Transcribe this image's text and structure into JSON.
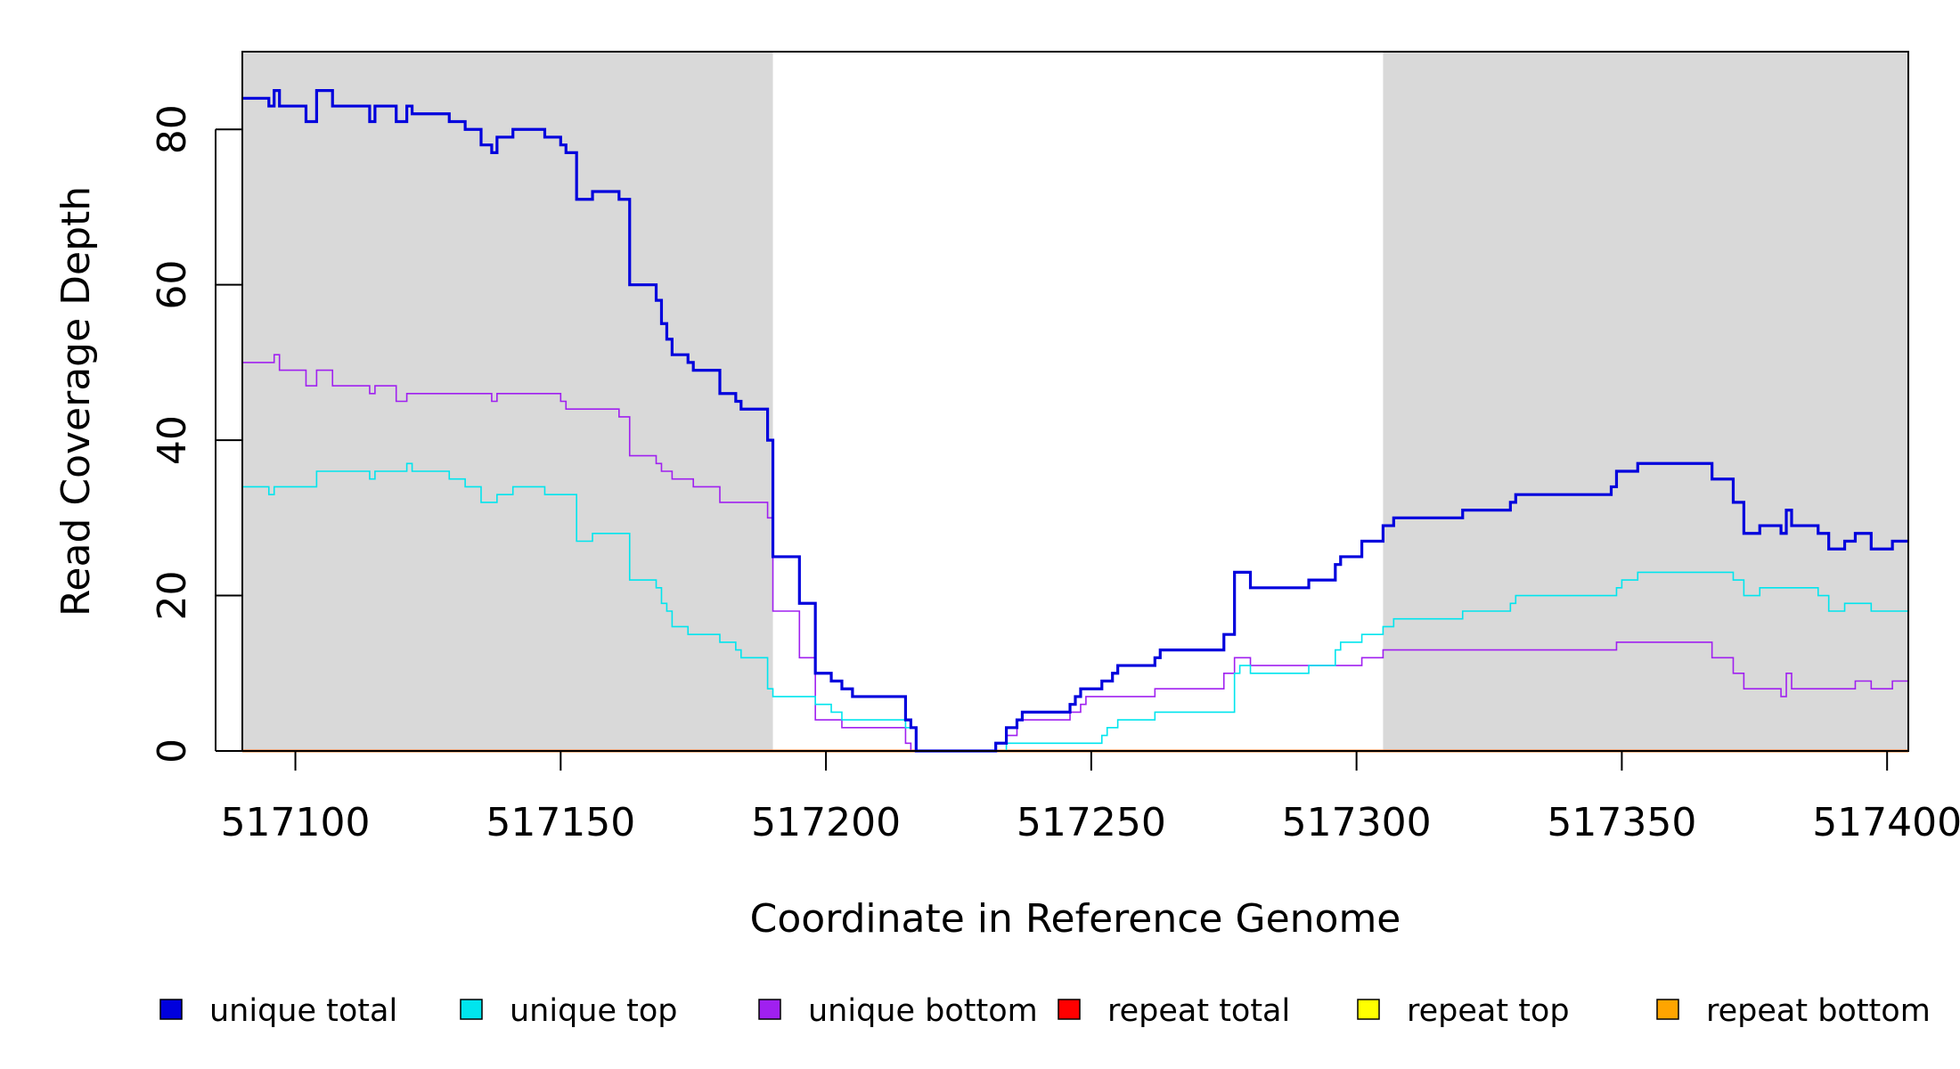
{
  "chart_data": {
    "type": "line",
    "step": true,
    "title": "",
    "xlabel": "Coordinate in Reference Genome",
    "ylabel": "Read Coverage Depth",
    "xlim": [
      517090,
      517404
    ],
    "ylim": [
      0,
      90
    ],
    "xticks": [
      517100,
      517150,
      517200,
      517250,
      517300,
      517350,
      517400
    ],
    "xtick_labels": [
      "517100",
      "517150",
      "517200",
      "517250",
      "517300",
      "517350",
      "517400"
    ],
    "yticks": [
      0,
      20,
      40,
      60,
      80
    ],
    "ytick_labels": [
      "0",
      "20",
      "40",
      "60",
      "80"
    ],
    "shaded_regions": [
      [
        517090,
        517190
      ],
      [
        517305,
        517404
      ]
    ],
    "shade_color": "#d9d9d9",
    "grid": false,
    "legend_position": "bottom",
    "series": [
      {
        "name": "unique total",
        "color": "#0000dd",
        "points": [
          [
            517090,
            84
          ],
          [
            517095,
            83
          ],
          [
            517096,
            85
          ],
          [
            517097,
            83
          ],
          [
            517102,
            81
          ],
          [
            517104,
            85
          ],
          [
            517107,
            83
          ],
          [
            517114,
            81
          ],
          [
            517115,
            83
          ],
          [
            517119,
            81
          ],
          [
            517121,
            83
          ],
          [
            517122,
            82
          ],
          [
            517129,
            81
          ],
          [
            517132,
            80
          ],
          [
            517135,
            78
          ],
          [
            517137,
            77
          ],
          [
            517138,
            79
          ],
          [
            517141,
            80
          ],
          [
            517147,
            79
          ],
          [
            517150,
            78
          ],
          [
            517151,
            77
          ],
          [
            517153,
            71
          ],
          [
            517156,
            72
          ],
          [
            517161,
            71
          ],
          [
            517163,
            60
          ],
          [
            517168,
            58
          ],
          [
            517169,
            55
          ],
          [
            517170,
            53
          ],
          [
            517171,
            51
          ],
          [
            517174,
            50
          ],
          [
            517175,
            49
          ],
          [
            517180,
            46
          ],
          [
            517183,
            45
          ],
          [
            517184,
            44
          ],
          [
            517189,
            40
          ],
          [
            517190,
            25
          ],
          [
            517195,
            19
          ],
          [
            517198,
            10
          ],
          [
            517201,
            9
          ],
          [
            517203,
            8
          ],
          [
            517205,
            7
          ],
          [
            517215,
            4
          ],
          [
            517216,
            3
          ],
          [
            517217,
            0
          ],
          [
            517232,
            1
          ],
          [
            517234,
            3
          ],
          [
            517236,
            4
          ],
          [
            517237,
            5
          ],
          [
            517246,
            6
          ],
          [
            517247,
            7
          ],
          [
            517248,
            8
          ],
          [
            517252,
            9
          ],
          [
            517254,
            10
          ],
          [
            517255,
            11
          ],
          [
            517262,
            12
          ],
          [
            517263,
            13
          ],
          [
            517275,
            15
          ],
          [
            517277,
            23
          ],
          [
            517280,
            21
          ],
          [
            517291,
            22
          ],
          [
            517296,
            24
          ],
          [
            517297,
            25
          ],
          [
            517301,
            27
          ],
          [
            517305,
            29
          ],
          [
            517307,
            30
          ],
          [
            517320,
            31
          ],
          [
            517329,
            32
          ],
          [
            517330,
            33
          ],
          [
            517348,
            34
          ],
          [
            517349,
            36
          ],
          [
            517353,
            37
          ],
          [
            517367,
            35
          ],
          [
            517371,
            32
          ],
          [
            517373,
            28
          ],
          [
            517376,
            29
          ],
          [
            517380,
            28
          ],
          [
            517381,
            31
          ],
          [
            517382,
            29
          ],
          [
            517387,
            28
          ],
          [
            517389,
            26
          ],
          [
            517392,
            27
          ],
          [
            517394,
            28
          ],
          [
            517397,
            26
          ],
          [
            517401,
            27
          ],
          [
            517404,
            27
          ]
        ]
      },
      {
        "name": "unique top",
        "color": "#00e5ee",
        "points": [
          [
            517090,
            34
          ],
          [
            517095,
            33
          ],
          [
            517096,
            34
          ],
          [
            517104,
            36
          ],
          [
            517114,
            35
          ],
          [
            517115,
            36
          ],
          [
            517121,
            37
          ],
          [
            517122,
            36
          ],
          [
            517129,
            35
          ],
          [
            517132,
            34
          ],
          [
            517135,
            32
          ],
          [
            517138,
            33
          ],
          [
            517141,
            34
          ],
          [
            517147,
            33
          ],
          [
            517153,
            27
          ],
          [
            517156,
            28
          ],
          [
            517163,
            22
          ],
          [
            517168,
            21
          ],
          [
            517169,
            19
          ],
          [
            517170,
            18
          ],
          [
            517171,
            16
          ],
          [
            517174,
            15
          ],
          [
            517180,
            14
          ],
          [
            517183,
            13
          ],
          [
            517184,
            12
          ],
          [
            517189,
            8
          ],
          [
            517190,
            7
          ],
          [
            517198,
            6
          ],
          [
            517201,
            5
          ],
          [
            517203,
            4
          ],
          [
            517215,
            3
          ],
          [
            517217,
            0
          ],
          [
            517234,
            1
          ],
          [
            517252,
            2
          ],
          [
            517253,
            3
          ],
          [
            517255,
            4
          ],
          [
            517262,
            5
          ],
          [
            517277,
            10
          ],
          [
            517278,
            11
          ],
          [
            517280,
            10
          ],
          [
            517291,
            11
          ],
          [
            517296,
            13
          ],
          [
            517297,
            14
          ],
          [
            517301,
            15
          ],
          [
            517305,
            16
          ],
          [
            517307,
            17
          ],
          [
            517320,
            18
          ],
          [
            517329,
            19
          ],
          [
            517330,
            20
          ],
          [
            517349,
            21
          ],
          [
            517350,
            22
          ],
          [
            517353,
            23
          ],
          [
            517371,
            22
          ],
          [
            517373,
            20
          ],
          [
            517376,
            21
          ],
          [
            517387,
            20
          ],
          [
            517389,
            18
          ],
          [
            517392,
            19
          ],
          [
            517397,
            18
          ],
          [
            517404,
            18
          ]
        ]
      },
      {
        "name": "unique bottom",
        "color": "#a020f0",
        "points": [
          [
            517090,
            50
          ],
          [
            517096,
            51
          ],
          [
            517097,
            49
          ],
          [
            517102,
            47
          ],
          [
            517104,
            49
          ],
          [
            517107,
            47
          ],
          [
            517114,
            46
          ],
          [
            517115,
            47
          ],
          [
            517119,
            45
          ],
          [
            517121,
            46
          ],
          [
            517128,
            46
          ],
          [
            517137,
            45
          ],
          [
            517138,
            46
          ],
          [
            517150,
            45
          ],
          [
            517151,
            44
          ],
          [
            517161,
            43
          ],
          [
            517163,
            38
          ],
          [
            517168,
            37
          ],
          [
            517169,
            36
          ],
          [
            517171,
            35
          ],
          [
            517175,
            34
          ],
          [
            517180,
            32
          ],
          [
            517189,
            30
          ],
          [
            517190,
            18
          ],
          [
            517195,
            12
          ],
          [
            517198,
            4
          ],
          [
            517203,
            3
          ],
          [
            517215,
            1
          ],
          [
            517216,
            0
          ],
          [
            517232,
            1
          ],
          [
            517234,
            2
          ],
          [
            517236,
            4
          ],
          [
            517246,
            5
          ],
          [
            517248,
            6
          ],
          [
            517249,
            7
          ],
          [
            517262,
            8
          ],
          [
            517275,
            10
          ],
          [
            517277,
            12
          ],
          [
            517280,
            11
          ],
          [
            517301,
            12
          ],
          [
            517305,
            13
          ],
          [
            517349,
            14
          ],
          [
            517367,
            12
          ],
          [
            517371,
            10
          ],
          [
            517373,
            8
          ],
          [
            517380,
            7
          ],
          [
            517381,
            10
          ],
          [
            517382,
            8
          ],
          [
            517394,
            9
          ],
          [
            517397,
            8
          ],
          [
            517401,
            9
          ],
          [
            517404,
            9
          ]
        ]
      },
      {
        "name": "repeat total",
        "color": "#ff0000",
        "points": [
          [
            517090,
            0
          ],
          [
            517404,
            0
          ]
        ]
      },
      {
        "name": "repeat top",
        "color": "#ffff00",
        "points": [
          [
            517090,
            0
          ],
          [
            517404,
            0
          ]
        ]
      },
      {
        "name": "repeat bottom",
        "color": "#ffa500",
        "points": [
          [
            517090,
            0
          ],
          [
            517404,
            0
          ]
        ]
      }
    ]
  }
}
